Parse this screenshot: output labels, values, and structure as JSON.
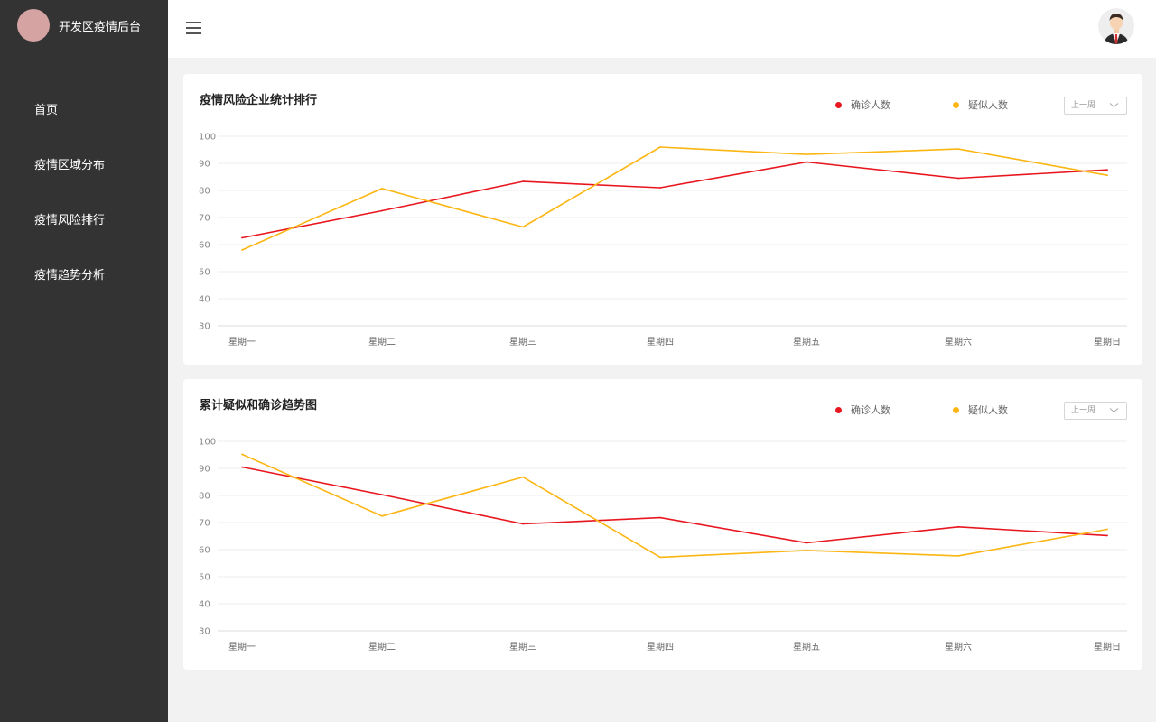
{
  "app": {
    "title": "开发区疫情后台"
  },
  "sidebar": {
    "items": [
      {
        "label": "首页"
      },
      {
        "label": "疫情区域分布"
      },
      {
        "label": "疫情风险排行"
      },
      {
        "label": "疫情趋势分析"
      }
    ]
  },
  "colors": {
    "confirmed": "#e8171f",
    "suspected": "#fbb613",
    "sidebar": "#333333"
  },
  "cards": [
    {
      "title": "疫情风险企业统计排行",
      "legend": [
        "确诊人数",
        "疑似人数"
      ],
      "select_value": "上一周"
    },
    {
      "title": "累计疑似和确诊趋势图",
      "legend": [
        "确诊人数",
        "疑似人数"
      ],
      "select_value": "上一周"
    }
  ],
  "chart_data": [
    {
      "type": "line",
      "title": "疫情风险企业统计排行",
      "categories": [
        "星期一",
        "星期二",
        "星期三",
        "星期四",
        "星期五",
        "星期六",
        "星期日"
      ],
      "yticks": [
        "30",
        "40",
        "50",
        "60",
        "70",
        "80",
        "90",
        "100"
      ],
      "ylim": [
        30,
        100
      ],
      "grid": true,
      "legend_position": "top-right",
      "series": [
        {
          "name": "确诊人数",
          "color": "#e8171f",
          "values": [
            62.5,
            72.5,
            83.3,
            81,
            90.5,
            84.5,
            87.6
          ]
        },
        {
          "name": "疑似人数",
          "color": "#fbb613",
          "values": [
            58,
            80.7,
            66.5,
            96,
            93.3,
            95.3,
            85.6
          ]
        }
      ]
    },
    {
      "type": "line",
      "title": "累计疑似和确诊趋势图",
      "categories": [
        "星期一",
        "星期二",
        "星期三",
        "星期四",
        "星期五",
        "星期六",
        "星期日"
      ],
      "yticks": [
        "30",
        "40",
        "50",
        "60",
        "70",
        "80",
        "90",
        "100"
      ],
      "ylim": [
        30,
        100
      ],
      "grid": true,
      "legend_position": "top-right",
      "series": [
        {
          "name": "确诊人数",
          "color": "#e8171f",
          "values": [
            90.5,
            80.3,
            69.5,
            71.8,
            62.5,
            68.4,
            65.2
          ]
        },
        {
          "name": "疑似人数",
          "color": "#fbb613",
          "values": [
            95.2,
            72.4,
            86.8,
            57.2,
            59.7,
            57.7,
            67.5
          ]
        }
      ]
    }
  ]
}
